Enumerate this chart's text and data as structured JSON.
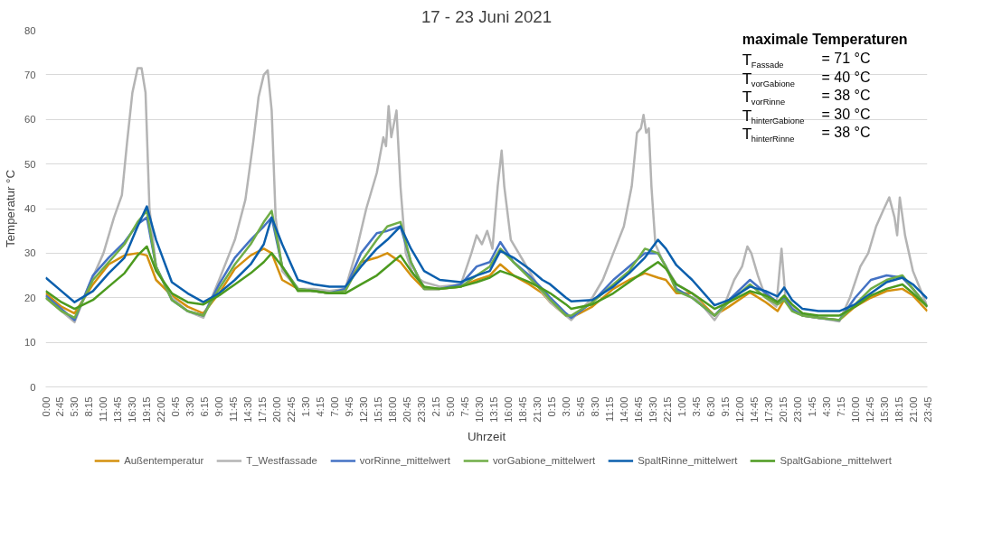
{
  "chart_data": {
    "type": "line",
    "title": "17 - 23 Juni 2021",
    "xlabel": "Uhrzeit",
    "ylabel": "Temperatur °C",
    "xlim": [
      "2021-06-17T00:00",
      "2021-06-23T23:45"
    ],
    "ylim": [
      0,
      80
    ],
    "yticks": [
      0,
      10,
      20,
      30,
      40,
      50,
      60,
      70,
      80
    ],
    "xticks": [
      {
        "value": "2021-06-17T00:00",
        "label": "0:00"
      },
      {
        "value": "2021-06-17T02:45",
        "label": "2:45"
      },
      {
        "value": "2021-06-17T05:30",
        "label": "5:30"
      },
      {
        "value": "2021-06-17T08:15",
        "label": "8:15"
      },
      {
        "value": "2021-06-17T11:00",
        "label": "11:00"
      },
      {
        "value": "2021-06-17T13:45",
        "label": "13:45"
      },
      {
        "value": "2021-06-17T16:30",
        "label": "16:30"
      },
      {
        "value": "2021-06-17T19:15",
        "label": "19:15"
      },
      {
        "value": "2021-06-17T22:00",
        "label": "22:00"
      },
      {
        "value": "2021-06-18T00:45",
        "label": "0:45"
      },
      {
        "value": "2021-06-18T03:30",
        "label": "3:30"
      },
      {
        "value": "2021-06-18T06:15",
        "label": "6:15"
      },
      {
        "value": "2021-06-18T09:00",
        "label": "9:00"
      },
      {
        "value": "2021-06-18T11:45",
        "label": "11:45"
      },
      {
        "value": "2021-06-18T14:30",
        "label": "14:30"
      },
      {
        "value": "2021-06-18T17:15",
        "label": "17:15"
      },
      {
        "value": "2021-06-18T20:00",
        "label": "20:00"
      },
      {
        "value": "2021-06-18T22:45",
        "label": "22:45"
      },
      {
        "value": "2021-06-19T01:30",
        "label": "1:30"
      },
      {
        "value": "2021-06-19T04:15",
        "label": "4:15"
      },
      {
        "value": "2021-06-19T07:00",
        "label": "7:00"
      },
      {
        "value": "2021-06-19T09:45",
        "label": "9:45"
      },
      {
        "value": "2021-06-19T12:30",
        "label": "12:30"
      },
      {
        "value": "2021-06-19T15:15",
        "label": "15:15"
      },
      {
        "value": "2021-06-19T18:00",
        "label": "18:00"
      },
      {
        "value": "2021-06-19T20:45",
        "label": "20:45"
      },
      {
        "value": "2021-06-19T23:30",
        "label": "23:30"
      },
      {
        "value": "2021-06-20T02:15",
        "label": "2:15"
      },
      {
        "value": "2021-06-20T05:00",
        "label": "5:00"
      },
      {
        "value": "2021-06-20T07:45",
        "label": "7:45"
      },
      {
        "value": "2021-06-20T10:30",
        "label": "10:30"
      },
      {
        "value": "2021-06-20T13:15",
        "label": "13:15"
      },
      {
        "value": "2021-06-20T16:00",
        "label": "16:00"
      },
      {
        "value": "2021-06-20T18:45",
        "label": "18:45"
      },
      {
        "value": "2021-06-20T21:30",
        "label": "21:30"
      },
      {
        "value": "2021-06-21T00:15",
        "label": "0:15"
      },
      {
        "value": "2021-06-21T03:00",
        "label": "3:00"
      },
      {
        "value": "2021-06-21T05:45",
        "label": "5:45"
      },
      {
        "value": "2021-06-21T08:30",
        "label": "8:30"
      },
      {
        "value": "2021-06-21T11:15",
        "label": "11:15"
      },
      {
        "value": "2021-06-21T14:00",
        "label": "14:00"
      },
      {
        "value": "2021-06-21T16:45",
        "label": "16:45"
      },
      {
        "value": "2021-06-21T19:30",
        "label": "19:30"
      },
      {
        "value": "2021-06-21T22:15",
        "label": "22:15"
      },
      {
        "value": "2021-06-22T01:00",
        "label": "1:00"
      },
      {
        "value": "2021-06-22T03:45",
        "label": "3:45"
      },
      {
        "value": "2021-06-22T06:30",
        "label": "6:30"
      },
      {
        "value": "2021-06-22T09:15",
        "label": "9:15"
      },
      {
        "value": "2021-06-22T12:00",
        "label": "12:00"
      },
      {
        "value": "2021-06-22T14:45",
        "label": "14:45"
      },
      {
        "value": "2021-06-22T17:30",
        "label": "17:30"
      },
      {
        "value": "2021-06-22T20:15",
        "label": "20:15"
      },
      {
        "value": "2021-06-22T23:00",
        "label": "23:00"
      },
      {
        "value": "2021-06-23T01:45",
        "label": "1:45"
      },
      {
        "value": "2021-06-23T04:30",
        "label": "4:30"
      },
      {
        "value": "2021-06-23T07:15",
        "label": "7:15"
      },
      {
        "value": "2021-06-23T10:00",
        "label": "10:00"
      },
      {
        "value": "2021-06-23T12:45",
        "label": "12:45"
      },
      {
        "value": "2021-06-23T15:30",
        "label": "15:30"
      },
      {
        "value": "2021-06-23T18:15",
        "label": "18:15"
      },
      {
        "value": "2021-06-23T21:00",
        "label": "21:00"
      },
      {
        "value": "2021-06-23T23:45",
        "label": "23:45"
      }
    ],
    "grid": "y",
    "legend": "bottom",
    "marker": "none",
    "line_style": "solid",
    "x": [
      "2021-06-17T00:00",
      "2021-06-17T03:00",
      "2021-06-17T05:30",
      "2021-06-17T09:00",
      "2021-06-17T12:00",
      "2021-06-17T15:00",
      "2021-06-17T17:30",
      "2021-06-17T19:15",
      "2021-06-17T21:00",
      "2021-06-18T00:00",
      "2021-06-18T03:00",
      "2021-06-18T06:00",
      "2021-06-18T09:00",
      "2021-06-18T12:00",
      "2021-06-18T15:00",
      "2021-06-18T17:30",
      "2021-06-18T19:00",
      "2021-06-18T21:00",
      "2021-06-19T00:00",
      "2021-06-19T03:00",
      "2021-06-19T06:00",
      "2021-06-19T09:00",
      "2021-06-19T12:00",
      "2021-06-19T15:00",
      "2021-06-19T17:00",
      "2021-06-19T19:30",
      "2021-06-19T21:30",
      "2021-06-20T00:00",
      "2021-06-20T03:00",
      "2021-06-20T07:00",
      "2021-06-20T10:00",
      "2021-06-20T12:30",
      "2021-06-20T14:30",
      "2021-06-20T17:00",
      "2021-06-20T20:00",
      "2021-06-20T22:30",
      "2021-06-21T00:00",
      "2021-06-21T03:00",
      "2021-06-21T04:00",
      "2021-06-21T08:00",
      "2021-06-21T12:00",
      "2021-06-21T15:00",
      "2021-06-21T18:00",
      "2021-06-21T20:30",
      "2021-06-21T22:00",
      "2021-06-22T00:00",
      "2021-06-22T03:00",
      "2021-06-22T07:15",
      "2021-06-22T10:00",
      "2021-06-22T14:00",
      "2021-06-22T17:00",
      "2021-06-22T19:15",
      "2021-06-22T20:30",
      "2021-06-22T22:00",
      "2021-06-23T00:00",
      "2021-06-23T03:00",
      "2021-06-23T07:00",
      "2021-06-23T10:00",
      "2021-06-23T13:00",
      "2021-06-23T16:00",
      "2021-06-23T19:00",
      "2021-06-23T21:00",
      "2021-06-23T23:45"
    ],
    "series": [
      {
        "name": "Außentemperatur",
        "color": "#d4900e",
        "values": [
          21,
          18,
          16.5,
          23,
          27.5,
          29.5,
          30,
          29.5,
          24,
          20.5,
          18,
          16.5,
          21,
          26.5,
          29.5,
          31,
          30,
          24,
          22,
          21.5,
          21,
          22,
          28,
          29,
          30,
          28,
          25,
          22,
          22,
          22.5,
          24,
          25,
          27.5,
          25,
          23,
          21,
          19,
          16,
          15.5,
          18,
          22,
          24,
          25.5,
          24.5,
          24,
          21,
          21,
          16,
          18,
          21.2,
          19,
          17,
          19.5,
          17.5,
          16,
          15.5,
          15,
          18,
          20,
          21.5,
          22,
          20.5,
          17
        ]
      },
      {
        "name": "T_Westfassade",
        "color": "#b4b4b4",
        "x": [
          "2021-06-17T00:00",
          "2021-06-17T03:00",
          "2021-06-17T05:30",
          "2021-06-17T08:00",
          "2021-06-17T11:00",
          "2021-06-17T13:00",
          "2021-06-17T14:30",
          "2021-06-17T15:30",
          "2021-06-17T16:30",
          "2021-06-17T17:30",
          "2021-06-17T18:15",
          "2021-06-17T19:00",
          "2021-06-17T19:45",
          "2021-06-17T21:00",
          "2021-06-18T00:00",
          "2021-06-18T03:00",
          "2021-06-18T06:00",
          "2021-06-18T09:00",
          "2021-06-18T12:00",
          "2021-06-18T14:00",
          "2021-06-18T15:30",
          "2021-06-18T16:30",
          "2021-06-18T17:30",
          "2021-06-18T18:15",
          "2021-06-18T19:00",
          "2021-06-18T19:45",
          "2021-06-18T21:00",
          "2021-06-19T00:00",
          "2021-06-19T03:00",
          "2021-06-19T06:00",
          "2021-06-19T09:00",
          "2021-06-19T11:00",
          "2021-06-19T13:00",
          "2021-06-19T15:00",
          "2021-06-19T16:15",
          "2021-06-19T16:45",
          "2021-06-19T17:15",
          "2021-06-19T17:45",
          "2021-06-19T18:45",
          "2021-06-19T19:30",
          "2021-06-19T20:30",
          "2021-06-19T22:00",
          "2021-06-20T00:00",
          "2021-06-20T03:00",
          "2021-06-20T07:00",
          "2021-06-20T09:00",
          "2021-06-20T10:00",
          "2021-06-20T11:00",
          "2021-06-20T12:00",
          "2021-06-20T13:00",
          "2021-06-20T14:00",
          "2021-06-20T14:45",
          "2021-06-20T15:15",
          "2021-06-20T16:30",
          "2021-06-20T19:00",
          "2021-06-20T22:00",
          "2021-06-21T00:00",
          "2021-06-21T03:00",
          "2021-06-21T04:00",
          "2021-06-21T08:00",
          "2021-06-21T10:00",
          "2021-06-21T12:00",
          "2021-06-21T14:00",
          "2021-06-21T15:30",
          "2021-06-21T16:30",
          "2021-06-21T17:15",
          "2021-06-21T17:45",
          "2021-06-21T18:15",
          "2021-06-21T18:45",
          "2021-06-21T19:15",
          "2021-06-21T20:00",
          "2021-06-21T21:30",
          "2021-06-22T00:00",
          "2021-06-22T03:00",
          "2021-06-22T07:15",
          "2021-06-22T09:00",
          "2021-06-22T11:00",
          "2021-06-22T12:30",
          "2021-06-22T13:30",
          "2021-06-22T14:15",
          "2021-06-22T15:30",
          "2021-06-22T17:00",
          "2021-06-22T19:00",
          "2021-06-22T20:00",
          "2021-06-22T20:45",
          "2021-06-22T23:00",
          "2021-06-23T03:00",
          "2021-06-23T07:00",
          "2021-06-23T09:00",
          "2021-06-23T11:00",
          "2021-06-23T12:30",
          "2021-06-23T14:00",
          "2021-06-23T15:30",
          "2021-06-23T16:30",
          "2021-06-23T17:30",
          "2021-06-23T18:00",
          "2021-06-23T18:30",
          "2021-06-23T19:30",
          "2021-06-23T21:00",
          "2021-06-23T23:45"
        ],
        "values": [
          20,
          17,
          14.5,
          22,
          30,
          38,
          43,
          55,
          66,
          71.5,
          71.5,
          66,
          40,
          27,
          20,
          17,
          15.5,
          24,
          33,
          42,
          55,
          65,
          70,
          71,
          62,
          38,
          26,
          22,
          22,
          21.5,
          22,
          30,
          40,
          48,
          56,
          54,
          63,
          56,
          62,
          45,
          30,
          25,
          23.5,
          22.5,
          23,
          30,
          34,
          32,
          35,
          31,
          45,
          53,
          45,
          33,
          28,
          22,
          19,
          16,
          15,
          20,
          24,
          30,
          36,
          45,
          57,
          58,
          61,
          57,
          58,
          45,
          32,
          28,
          23,
          21,
          15,
          18,
          24,
          27,
          31.5,
          30,
          25,
          20,
          18,
          31,
          20,
          16.5,
          15.5,
          14.7,
          20,
          27,
          30,
          36,
          40,
          42.5,
          38,
          34,
          42.5,
          34,
          26,
          18
        ]
      },
      {
        "name": "vorRinne_mittelwert",
        "color": "#4472c4",
        "values": [
          20.5,
          17.5,
          15,
          25,
          29,
          32.5,
          36.5,
          38,
          27,
          19.5,
          17,
          16,
          23,
          29,
          33,
          36,
          38,
          27,
          22,
          21.5,
          21,
          22,
          30,
          34.5,
          35,
          36,
          28,
          22,
          22,
          23,
          27,
          28,
          32.5,
          28,
          25,
          22,
          20,
          16.5,
          15.5,
          19,
          24,
          27,
          30,
          30,
          27,
          22,
          20,
          16,
          19.5,
          24,
          21,
          19,
          20,
          17.5,
          16,
          15.5,
          15,
          20,
          24,
          25,
          24.5,
          22,
          18
        ]
      },
      {
        "name": "vorGabione_mittelwert",
        "color": "#70ad47",
        "values": [
          20,
          17,
          15.5,
          24,
          28,
          32,
          37,
          39.5,
          27,
          19.5,
          17,
          16,
          22,
          27.5,
          32,
          37,
          39.5,
          27,
          22,
          21.5,
          21,
          21.5,
          28,
          33,
          36,
          37,
          28,
          22,
          22,
          22.5,
          25,
          27,
          31,
          28,
          24.5,
          21.5,
          19.5,
          16,
          16,
          19,
          23,
          26,
          31,
          30,
          27,
          21.5,
          20,
          16,
          19,
          23,
          20,
          18.5,
          19.5,
          17,
          16,
          15.5,
          15,
          18.5,
          22,
          24,
          25,
          22,
          18
        ]
      },
      {
        "name": "SpaltRinne_mittelwert",
        "color": "#0b5fad",
        "values": [
          24.5,
          21.5,
          19,
          21.5,
          25.5,
          29,
          36,
          40.5,
          33,
          23.5,
          21,
          19,
          21,
          24,
          27.5,
          32,
          38,
          32,
          24,
          23,
          22.5,
          22.5,
          27,
          31,
          33,
          36,
          31,
          26,
          24,
          23.5,
          25,
          26,
          30.5,
          29,
          26.5,
          24,
          23,
          20,
          19.2,
          19.5,
          22.5,
          25.5,
          29,
          33,
          31,
          27.3,
          24,
          18.3,
          19.5,
          22.5,
          21.5,
          20.3,
          22.3,
          19.5,
          17.5,
          17,
          17,
          18.5,
          21,
          23.5,
          24.5,
          23,
          19.8
        ]
      },
      {
        "name": "SpaltGabione_mittelwert",
        "color": "#4c9a1f",
        "values": [
          21.5,
          19,
          17.5,
          19.5,
          22.5,
          25.5,
          29.5,
          31.5,
          26,
          21,
          19,
          18.5,
          20.5,
          23,
          25.5,
          28,
          30,
          27,
          21.5,
          21.5,
          21,
          21,
          23,
          25,
          27,
          29.5,
          26,
          22.5,
          22,
          22.5,
          23.5,
          24.5,
          26,
          25,
          23.5,
          22,
          21,
          18.5,
          17.5,
          18.5,
          21,
          23.5,
          26,
          28,
          26.5,
          23,
          21,
          17.5,
          19,
          21.5,
          20.5,
          19,
          20.5,
          18.5,
          16.5,
          16,
          16,
          18,
          20.5,
          22,
          23,
          21,
          18
        ]
      }
    ],
    "annotations": [
      "maximale Temperaturen",
      "T$_{Fassade}$ = 71 °C",
      "T$_{vorGabione}$ = 40 °C",
      "T$_{vorRinne}$ = 38 °C",
      "T$_{hinterGabione}$ = 30 °C",
      "T$_{hinterRinne}$ = 38 °C"
    ]
  }
}
